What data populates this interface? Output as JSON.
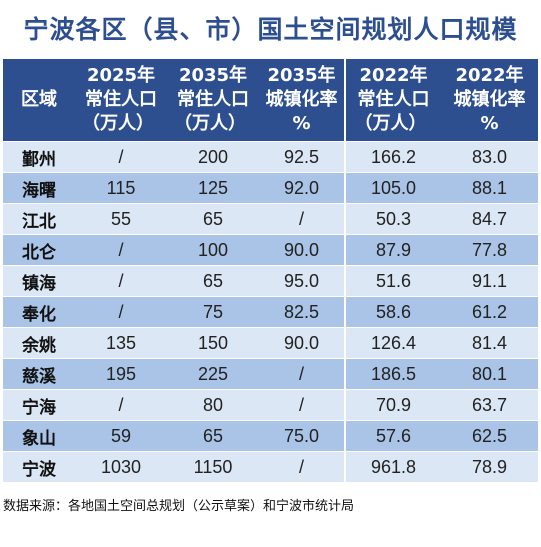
{
  "title": "宁波各区（县、市）国土空间规划人口规模",
  "headers": [
    {
      "line1": "区域",
      "line2": "",
      "line3": ""
    },
    {
      "line1": "2025年",
      "line2": "常住人口",
      "line3": "（万人）"
    },
    {
      "line1": "2035年",
      "line2": "常住人口",
      "line3": "（万人）"
    },
    {
      "line1": "2035年",
      "line2": "城镇化率",
      "line3": "%"
    },
    {
      "line1": "2022年",
      "line2": "常住人口",
      "line3": "（万人）"
    },
    {
      "line1": "2022年",
      "line2": "城镇化率",
      "line3": "%"
    }
  ],
  "rows": [
    [
      "鄞州",
      "/",
      "200",
      "92.5",
      "166.2",
      "83.0"
    ],
    [
      "海曙",
      "115",
      "125",
      "92.0",
      "105.0",
      "88.1"
    ],
    [
      "江北",
      "55",
      "65",
      "/",
      "50.3",
      "84.7"
    ],
    [
      "北仑",
      "/",
      "100",
      "90.0",
      "87.9",
      "77.8"
    ],
    [
      "镇海",
      "/",
      "65",
      "95.0",
      "51.6",
      "91.1"
    ],
    [
      "奉化",
      "/",
      "75",
      "82.5",
      "58.6",
      "61.2"
    ],
    [
      "余姚",
      "135",
      "150",
      "90.0",
      "126.4",
      "81.4"
    ],
    [
      "慈溪",
      "195",
      "225",
      "/",
      "186.5",
      "80.1"
    ],
    [
      "宁海",
      "/",
      "80",
      "/",
      "70.9",
      "63.7"
    ],
    [
      "象山",
      "59",
      "65",
      "75.0",
      "57.6",
      "62.5"
    ],
    [
      "宁波",
      "1030",
      "1150",
      "/",
      "961.8",
      "78.9"
    ]
  ],
  "source": "数据来源：各地国土空间总规划（公示草案）和宁波市统计局",
  "colors": {
    "header_bg": "#2e4f8f",
    "row_light": "#dce7f5",
    "row_dark": "#a9c4e6",
    "title_text": "#2e4f8f"
  }
}
